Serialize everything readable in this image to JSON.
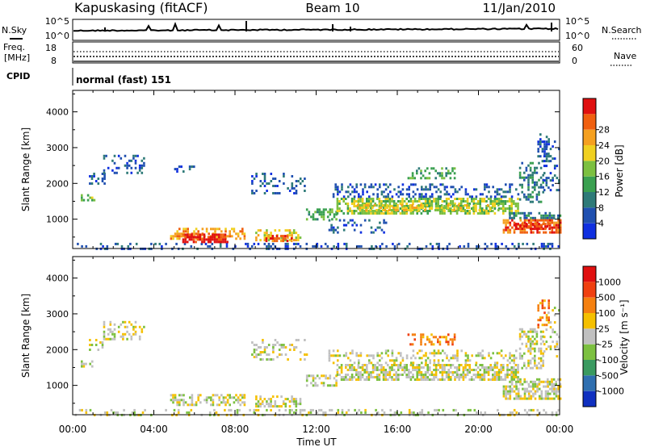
{
  "header": {
    "radar": "Kapuskasing (fitACF)",
    "beam": "Beam 10",
    "date": "11/Jan/2010"
  },
  "noise_panel": {
    "left_label": "N.Sky",
    "right_label": "N.Search",
    "left_ticks": [
      "10^5",
      "10^0"
    ],
    "right_ticks": [
      "10^5",
      "10^0"
    ]
  },
  "freq_panel": {
    "left_label_1": "Freq.",
    "left_label_2": "[MHz]",
    "right_label": "Nave",
    "left_ticks": [
      "18",
      "8"
    ],
    "right_ticks": [
      "60",
      "0"
    ]
  },
  "cpid_panel": {
    "label": "CPID",
    "text": "normal (fast) 151"
  },
  "chart_data": [
    {
      "type": "heatmap",
      "ylabel": "Slant Range [km]",
      "xlabel": "",
      "x_ticks": [
        "00:00",
        "04:00",
        "08:00",
        "12:00",
        "16:00",
        "20:00",
        "00:00"
      ],
      "x_range_hours": [
        0,
        24
      ],
      "y_ticks": [
        1000,
        2000,
        3000,
        4000
      ],
      "ylim": [
        180,
        4600
      ],
      "colorbar": {
        "label": "Power [dB]",
        "ticks": [
          "4",
          "8",
          "12",
          "16",
          "20",
          "24",
          "28"
        ],
        "colors": [
          "#1030e0",
          "#2050b0",
          "#2e7a78",
          "#3aa050",
          "#7cc040",
          "#f0d020",
          "#f5a020",
          "#f06010",
          "#e01010"
        ]
      },
      "regions": [
        {
          "x0": 0.1,
          "x1": 24,
          "y0": 200,
          "y1": 340,
          "level": 1,
          "d": 0.25
        },
        {
          "x0": 0.8,
          "x1": 1.6,
          "y0": 2000,
          "y1": 2300,
          "level": 1,
          "d": 0.35
        },
        {
          "x0": 0.4,
          "x1": 1.1,
          "y0": 1500,
          "y1": 1700,
          "level": 4,
          "d": 0.45
        },
        {
          "x0": 1.5,
          "x1": 3.5,
          "y0": 2300,
          "y1": 2800,
          "level": 1,
          "d": 0.3
        },
        {
          "x0": 5.0,
          "x1": 6.0,
          "y0": 2300,
          "y1": 2500,
          "level": 1,
          "d": 0.35
        },
        {
          "x0": 4.8,
          "x1": 8.5,
          "y0": 460,
          "y1": 760,
          "level": 6,
          "d": 0.55
        },
        {
          "x0": 5.4,
          "x1": 7.6,
          "y0": 390,
          "y1": 600,
          "level": 8,
          "d": 0.7
        },
        {
          "x0": 9.0,
          "x1": 11.2,
          "y0": 420,
          "y1": 720,
          "level": 5,
          "d": 0.5
        },
        {
          "x0": 9.5,
          "x1": 10.8,
          "y0": 420,
          "y1": 560,
          "level": 7,
          "d": 0.55
        },
        {
          "x0": 8.8,
          "x1": 11.5,
          "y0": 1700,
          "y1": 2300,
          "level": 1,
          "d": 0.25
        },
        {
          "x0": 11.5,
          "x1": 13.0,
          "y0": 1000,
          "y1": 1300,
          "level": 3,
          "d": 0.5
        },
        {
          "x0": 13.0,
          "x1": 22.0,
          "y0": 1150,
          "y1": 1600,
          "level": 4,
          "d": 0.65
        },
        {
          "x0": 14.0,
          "x1": 21.0,
          "y0": 1280,
          "y1": 1420,
          "level": 5,
          "d": 0.5
        },
        {
          "x0": 12.6,
          "x1": 22.0,
          "y0": 1600,
          "y1": 2000,
          "level": 1,
          "d": 0.3
        },
        {
          "x0": 12.5,
          "x1": 15.5,
          "y0": 600,
          "y1": 1000,
          "level": 1,
          "d": 0.2
        },
        {
          "x0": 16.5,
          "x1": 18.8,
          "y0": 2150,
          "y1": 2450,
          "level": 3,
          "d": 0.35
        },
        {
          "x0": 21.5,
          "x1": 24.0,
          "y0": 1000,
          "y1": 1200,
          "level": 2,
          "d": 0.6
        },
        {
          "x0": 21.2,
          "x1": 24.0,
          "y0": 600,
          "y1": 1000,
          "level": 7,
          "d": 0.65
        },
        {
          "x0": 21.8,
          "x1": 23.5,
          "y0": 700,
          "y1": 900,
          "level": 8,
          "d": 0.6
        },
        {
          "x0": 22.0,
          "x1": 23.2,
          "y0": 1500,
          "y1": 2600,
          "level": 2,
          "d": 0.45
        },
        {
          "x0": 22.9,
          "x1": 23.5,
          "y0": 2600,
          "y1": 3400,
          "level": 1,
          "d": 0.35
        },
        {
          "x0": 23.2,
          "x1": 24.0,
          "y0": 1800,
          "y1": 3200,
          "level": 1,
          "d": 0.2
        }
      ]
    },
    {
      "type": "heatmap",
      "ylabel": "Slant Range [km]",
      "xlabel": "Time UT",
      "x_ticks": [
        "00:00",
        "04:00",
        "08:00",
        "12:00",
        "16:00",
        "20:00",
        "00:00"
      ],
      "x_range_hours": [
        0,
        24
      ],
      "y_ticks": [
        1000,
        2000,
        3000,
        4000
      ],
      "ylim": [
        180,
        4600
      ],
      "colorbar": {
        "label": "Velocity [m s⁻¹]",
        "ticks": [
          "1000",
          "500",
          "100",
          "25",
          "-25",
          "-100",
          "-500",
          "-1000"
        ],
        "colors": [
          "#1030c0",
          "#2f6fb0",
          "#3a9a60",
          "#7cc040",
          "#c0c0c0",
          "#f5c000",
          "#f58010",
          "#f04010",
          "#e01010"
        ]
      },
      "regions": [
        {
          "x0": 0.1,
          "x1": 24,
          "y0": 200,
          "y1": 340,
          "level": 4,
          "d": 0.25
        },
        {
          "x0": 0.8,
          "x1": 1.6,
          "y0": 2000,
          "y1": 2300,
          "level": 4,
          "d": 0.35
        },
        {
          "x0": 0.4,
          "x1": 1.1,
          "y0": 1500,
          "y1": 1700,
          "level": 4,
          "d": 0.45
        },
        {
          "x0": 1.5,
          "x1": 3.5,
          "y0": 2300,
          "y1": 2800,
          "level": 4,
          "d": 0.3
        },
        {
          "x0": 4.8,
          "x1": 8.5,
          "y0": 460,
          "y1": 760,
          "level": 4,
          "d": 0.55
        },
        {
          "x0": 9.0,
          "x1": 11.2,
          "y0": 420,
          "y1": 720,
          "level": 4,
          "d": 0.5
        },
        {
          "x0": 8.8,
          "x1": 11.5,
          "y0": 1700,
          "y1": 2300,
          "level": 4,
          "d": 0.25
        },
        {
          "x0": 11.5,
          "x1": 13.0,
          "y0": 1000,
          "y1": 1300,
          "level": 4,
          "d": 0.5
        },
        {
          "x0": 13.0,
          "x1": 22.0,
          "y0": 1150,
          "y1": 1600,
          "level": 4,
          "d": 0.65
        },
        {
          "x0": 12.6,
          "x1": 22.0,
          "y0": 1600,
          "y1": 2000,
          "level": 4,
          "d": 0.3
        },
        {
          "x0": 16.5,
          "x1": 18.8,
          "y0": 2150,
          "y1": 2450,
          "level": 6,
          "d": 0.3
        },
        {
          "x0": 21.5,
          "x1": 24.0,
          "y0": 1000,
          "y1": 1200,
          "level": 4,
          "d": 0.6
        },
        {
          "x0": 21.2,
          "x1": 24.0,
          "y0": 600,
          "y1": 1000,
          "level": 4,
          "d": 0.65
        },
        {
          "x0": 22.0,
          "x1": 23.2,
          "y0": 1500,
          "y1": 2600,
          "level": 4,
          "d": 0.45
        },
        {
          "x0": 22.9,
          "x1": 23.5,
          "y0": 2600,
          "y1": 3400,
          "level": 6,
          "d": 0.35
        },
        {
          "x0": 23.2,
          "x1": 24.0,
          "y0": 1800,
          "y1": 3200,
          "level": 4,
          "d": 0.2
        }
      ]
    }
  ]
}
